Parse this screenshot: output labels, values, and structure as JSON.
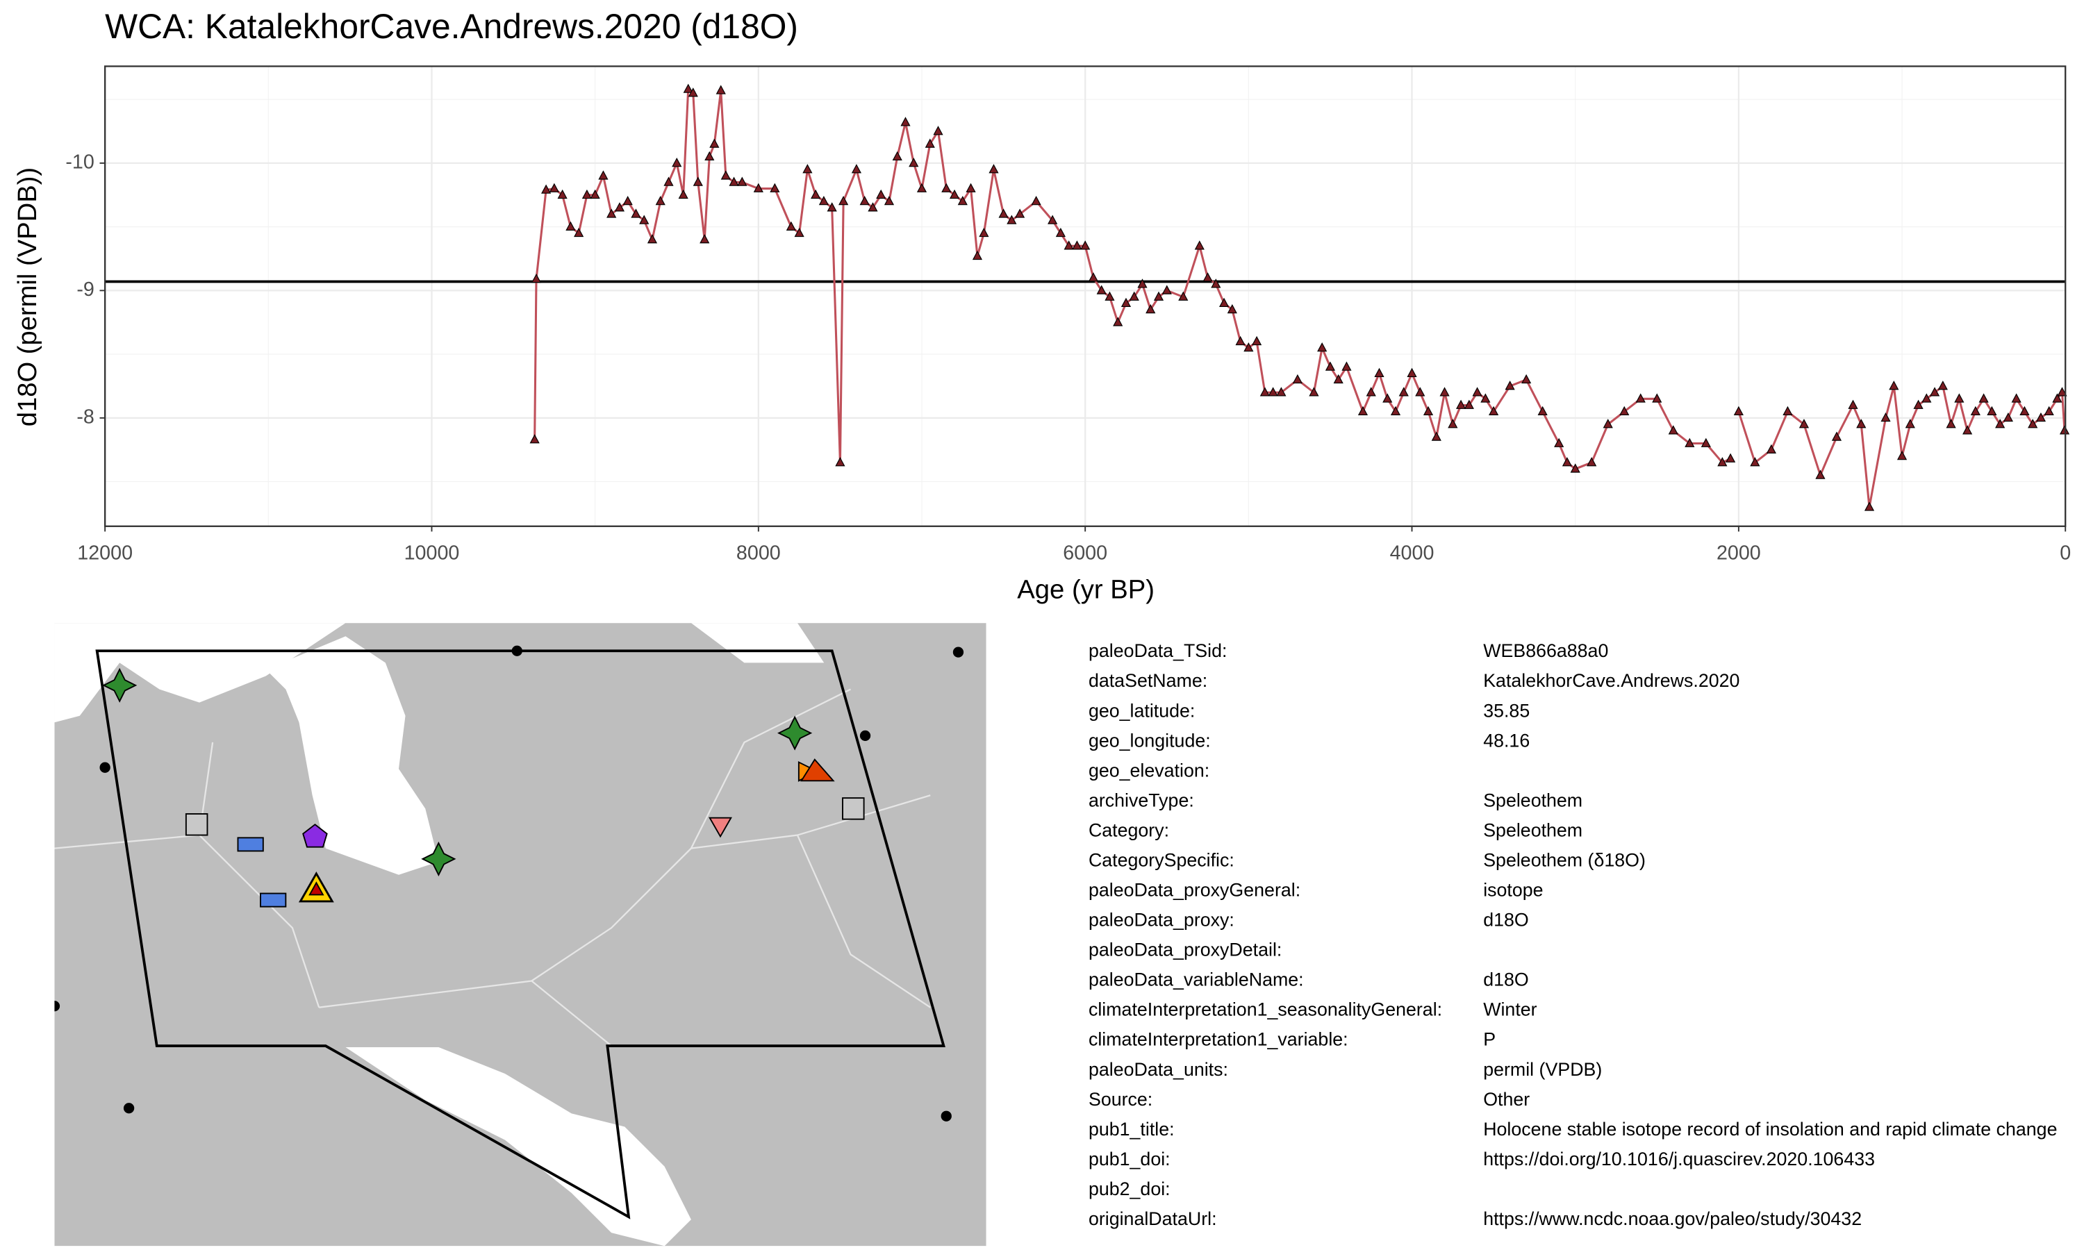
{
  "chart_data": {
    "type": "step",
    "title": "WCA: KatalekhorCave.Andrews.2020 (d18O)",
    "xlabel": "Age (yr BP)",
    "ylabel": "d18O (permil (VPDB))",
    "xlim": [
      12000,
      0
    ],
    "xticks": [
      12000,
      10000,
      8000,
      6000,
      4000,
      2000,
      0
    ],
    "xminorticks": [
      11000,
      9000,
      7000,
      5000,
      3000,
      1000
    ],
    "ylim": [
      -7.15,
      -10.76
    ],
    "yticks": [
      -10,
      -9,
      -8
    ],
    "yminorticks": [
      -10.5,
      -9.5,
      -8.5,
      -7.5
    ],
    "grid": true,
    "hline": -9.07,
    "color": "#c0505a",
    "marker_color": "#7a1c22",
    "x": [
      9370,
      9360,
      9300,
      9250,
      9200,
      9150,
      9100,
      9050,
      9000,
      8950,
      8900,
      8850,
      8800,
      8750,
      8700,
      8650,
      8600,
      8550,
      8500,
      8460,
      8430,
      8400,
      8370,
      8330,
      8300,
      8270,
      8230,
      8200,
      8150,
      8100,
      8000,
      7900,
      7800,
      7750,
      7700,
      7650,
      7600,
      7550,
      7500,
      7480,
      7400,
      7350,
      7300,
      7250,
      7200,
      7150,
      7100,
      7050,
      7000,
      6950,
      6900,
      6850,
      6800,
      6750,
      6700,
      6660,
      6620,
      6560,
      6500,
      6450,
      6400,
      6300,
      6200,
      6150,
      6100,
      6050,
      6000,
      5950,
      5900,
      5850,
      5800,
      5750,
      5700,
      5650,
      5600,
      5550,
      5500,
      5400,
      5300,
      5250,
      5200,
      5150,
      5100,
      5050,
      5000,
      4950,
      4900,
      4850,
      4800,
      4700,
      4600,
      4550,
      4500,
      4450,
      4400,
      4300,
      4250,
      4200,
      4150,
      4100,
      4050,
      4000,
      3950,
      3900,
      3850,
      3800,
      3750,
      3700,
      3650,
      3600,
      3550,
      3500,
      3400,
      3300,
      3200,
      3100,
      3050,
      3000,
      2900,
      2800,
      2700,
      2600,
      2500,
      2400,
      2300,
      2200,
      2100,
      2050,
      2030,
      2000,
      1900,
      1800,
      1700,
      1600,
      1500,
      1400,
      1300,
      1250,
      1200,
      1100,
      1050,
      1000,
      950,
      900,
      850,
      800,
      750,
      700,
      650,
      600,
      550,
      500,
      450,
      400,
      350,
      300,
      250,
      200,
      150,
      100,
      50,
      20,
      5
    ],
    "values": [
      -7.83,
      -9.09,
      -9.79,
      -9.8,
      -9.75,
      -9.5,
      -9.45,
      -9.75,
      -9.75,
      -9.9,
      -9.6,
      -9.65,
      -9.7,
      -9.6,
      -9.55,
      -9.4,
      -9.7,
      -9.85,
      -10.0,
      -9.75,
      -10.58,
      -10.55,
      -9.85,
      -9.4,
      -10.05,
      -10.15,
      -10.57,
      -9.9,
      -9.85,
      -9.85,
      -9.8,
      -9.8,
      -9.5,
      -9.45,
      -9.95,
      -9.75,
      -9.7,
      -9.65,
      -7.65,
      -9.7,
      -9.95,
      -9.7,
      -9.65,
      -9.75,
      -9.7,
      -10.05,
      -10.32,
      -10.0,
      -9.8,
      -10.15,
      -10.25,
      -9.8,
      -9.75,
      -9.7,
      -9.8,
      -9.27,
      -9.45,
      -9.95,
      -9.6,
      -9.55,
      -9.6,
      -9.7,
      -9.55,
      -9.45,
      -9.35,
      -9.35,
      -9.35,
      -9.1,
      -9.0,
      -8.95,
      -8.75,
      -8.9,
      -8.95,
      -9.05,
      -8.85,
      -8.95,
      -9.0,
      -8.95,
      -9.35,
      -9.1,
      -9.05,
      -8.9,
      -8.85,
      -8.6,
      -8.55,
      -8.6,
      -8.2,
      -8.2,
      -8.2,
      -8.3,
      -8.2,
      -8.55,
      -8.4,
      -8.3,
      -8.4,
      -8.05,
      -8.2,
      -8.35,
      -8.15,
      -8.05,
      -8.2,
      -8.35,
      -8.2,
      -8.05,
      -7.85,
      -8.2,
      -7.95,
      -8.1,
      -8.1,
      -8.2,
      -8.15,
      -8.05,
      -8.25,
      -8.3,
      -8.05,
      -7.8,
      -7.65,
      -7.6,
      -7.65,
      -7.95,
      -8.05,
      -8.15,
      -8.15,
      -7.9,
      -7.8,
      -7.8,
      -7.65,
      -7.68,
      null,
      -8.05,
      -7.65,
      -7.75,
      -8.05,
      -7.95,
      -7.55,
      -7.85,
      -8.1,
      -7.95,
      -7.3,
      -8.0,
      -8.25,
      -7.7,
      -7.95,
      -8.1,
      -8.15,
      -8.2,
      -8.25,
      -7.95,
      -8.15,
      -7.9,
      -8.05,
      -8.15,
      -8.05,
      -7.95,
      -8.0,
      -8.15,
      -8.05,
      -7.95,
      -8.0,
      -8.05,
      -8.15,
      -8.2,
      -7.9
    ]
  },
  "metadata": {
    "rows": [
      [
        "paleoData_TSid:",
        "WEB866a88a0"
      ],
      [
        "dataSetName:",
        "KatalekhorCave.Andrews.2020"
      ],
      [
        "geo_latitude:",
        "35.85"
      ],
      [
        "geo_longitude:",
        "48.16"
      ],
      [
        "geo_elevation:"
      ],
      [
        "archiveType:",
        "Speleothem"
      ],
      [
        "Category:",
        "Speleothem"
      ],
      [
        "CategorySpecific:",
        "Speleothem (δ18O)"
      ],
      [
        "paleoData_proxyGeneral:",
        "isotope"
      ],
      [
        "paleoData_proxy:",
        "d18O"
      ],
      [
        "paleoData_proxyDetail:"
      ],
      [
        "paleoData_variableName:",
        "d18O"
      ],
      [
        "climateInterpretation1_seasonalityGeneral:",
        "Winter"
      ],
      [
        "climateInterpretation1_variable:",
        "P"
      ],
      [
        "paleoData_units:",
        "permil (VPDB)"
      ],
      [
        "Source:",
        "Other"
      ],
      [
        "pub1_title:",
        "Holocene stable isotope record of insolation and rapid climate change"
      ],
      [
        "pub1_doi:",
        "https://doi.org/10.1016/j.quascirev.2020.106433"
      ],
      [
        "pub2_doi:"
      ],
      [
        "originalDataUrl:",
        "https://www.ncdc.noaa.gov/paleo/study/30432"
      ]
    ]
  }
}
